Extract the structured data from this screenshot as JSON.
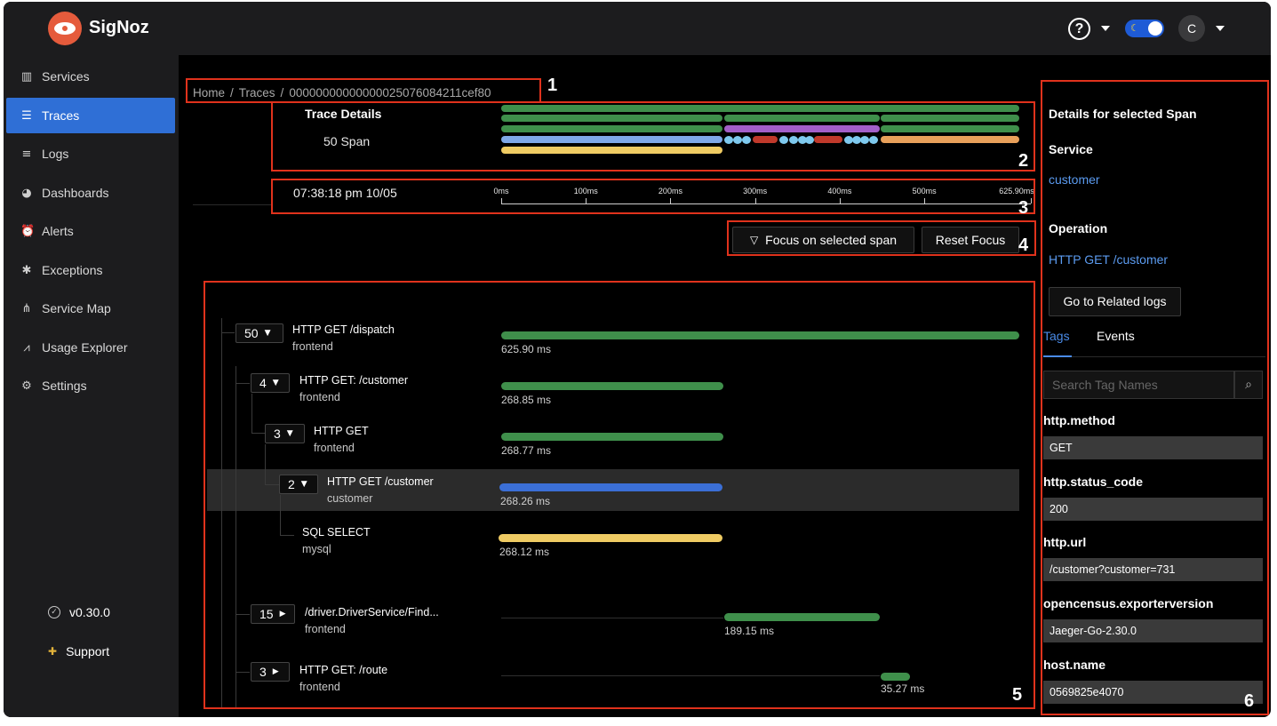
{
  "app": {
    "brand": "SigNoz"
  },
  "header": {
    "help_glyph": "?",
    "avatar_initial": "C",
    "theme_icon": "moon-icon"
  },
  "sidebar": {
    "items": [
      {
        "label": "Services",
        "icon": "bar-chart-icon",
        "glyph": "▥",
        "active": false
      },
      {
        "label": "Traces",
        "icon": "list-icon",
        "glyph": "☰",
        "active": true
      },
      {
        "label": "Logs",
        "icon": "logs-icon",
        "glyph": "≡",
        "active": false
      },
      {
        "label": "Dashboards",
        "icon": "dashboard-icon",
        "glyph": "◕",
        "active": false
      },
      {
        "label": "Alerts",
        "icon": "alarm-icon",
        "glyph": "⏰",
        "active": false
      },
      {
        "label": "Exceptions",
        "icon": "bug-icon",
        "glyph": "✱",
        "active": false
      },
      {
        "label": "Service Map",
        "icon": "deployment-icon",
        "glyph": "⋔",
        "active": false
      },
      {
        "label": "Usage Explorer",
        "icon": "line-chart-icon",
        "glyph": "⩘",
        "active": false
      },
      {
        "label": "Settings",
        "icon": "gear-icon",
        "glyph": "⚙",
        "active": false
      }
    ],
    "version": "v0.30.0",
    "support": "Support",
    "collapse_glyph": "<"
  },
  "breadcrumb": {
    "home": "Home",
    "traces": "Traces",
    "trace_id": "00000000000000025076084211cef80",
    "separator": "/"
  },
  "trace_summary": {
    "title": "Trace Details",
    "span_count": "50 Span"
  },
  "timeline": {
    "timestamp": "07:38:18 pm 10/05",
    "ticks": [
      {
        "label": "0ms",
        "value": 0
      },
      {
        "label": "100ms",
        "value": 100
      },
      {
        "label": "200ms",
        "value": 200
      },
      {
        "label": "300ms",
        "value": 300
      },
      {
        "label": "400ms",
        "value": 400
      },
      {
        "label": "500ms",
        "value": 500
      },
      {
        "label": "625.90ms",
        "value": 625.9
      }
    ],
    "total_ms": 625.9
  },
  "actions": {
    "focus": "Focus on selected span",
    "reset": "Reset Focus"
  },
  "spans": [
    {
      "count": "50",
      "name": "HTTP GET /dispatch",
      "service": "frontend",
      "duration": "625.90 ms",
      "expanded": true,
      "color": "#3f8f4b"
    },
    {
      "count": "4",
      "name": "HTTP GET: /customer",
      "service": "frontend",
      "duration": "268.85 ms",
      "expanded": true,
      "color": "#3f8f4b"
    },
    {
      "count": "3",
      "name": "HTTP GET",
      "service": "frontend",
      "duration": "268.77 ms",
      "expanded": true,
      "color": "#3f8f4b"
    },
    {
      "count": "2",
      "name": "HTTP GET /customer",
      "service": "customer",
      "duration": "268.26 ms",
      "expanded": true,
      "color": "#3b6fd6"
    },
    {
      "count": "",
      "name": "SQL SELECT",
      "service": "mysql",
      "duration": "268.12 ms",
      "expanded": false,
      "color": "#efcb63"
    },
    {
      "count": "15",
      "name": "/driver.DriverService/Find...",
      "service": "frontend",
      "duration": "189.15 ms",
      "expanded": false,
      "color": "#3f8f4b"
    },
    {
      "count": "3",
      "name": "HTTP GET: /route",
      "service": "frontend",
      "duration": "35.27 ms",
      "expanded": false,
      "color": "#3f8f4b"
    }
  ],
  "details": {
    "title": "Details for selected Span",
    "service_label": "Service",
    "service_value": "customer",
    "operation_label": "Operation",
    "operation_value": "HTTP GET /customer",
    "related_logs": "Go to Related logs",
    "tabs": [
      "Tags",
      "Events"
    ],
    "search_placeholder": "Search Tag Names",
    "tags": [
      {
        "key": "http.method",
        "value": "GET"
      },
      {
        "key": "http.status_code",
        "value": "200"
      },
      {
        "key": "http.url",
        "value": "/customer?customer=731"
      },
      {
        "key": "opencensus.exporterversion",
        "value": "Jaeger-Go-2.30.0"
      },
      {
        "key": "host.name",
        "value": "0569825e4070"
      }
    ]
  },
  "annotations": [
    "1",
    "2",
    "3",
    "4",
    "5",
    "6"
  ],
  "colors": {
    "accent": "#2f6fd6",
    "link": "#5b9bf0",
    "annotation": "#e0321c",
    "green": "#3f8f4b",
    "purple": "#a25fc9",
    "red": "#c0392b",
    "light_blue": "#7ec9ee",
    "orange": "#e8a05a",
    "yellow": "#efcb63",
    "periwinkle": "#7fa8e8"
  }
}
